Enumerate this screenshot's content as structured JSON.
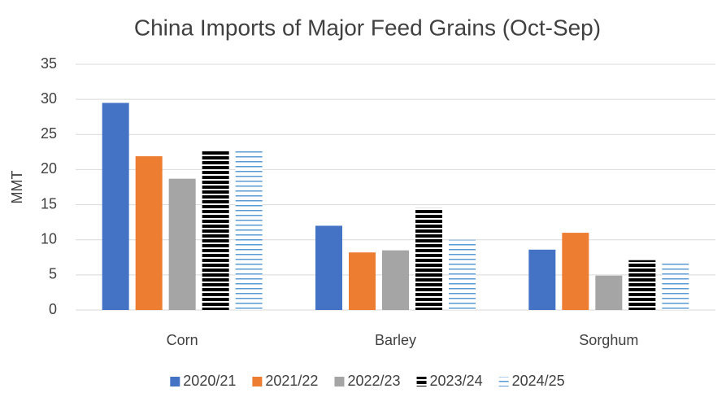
{
  "chart_data": {
    "type": "bar",
    "title": "China Imports of Major Feed Grains (Oct-Sep)",
    "y_label": "MMT",
    "categories": [
      "Corn",
      "Barley",
      "Sorghum"
    ],
    "series": [
      {
        "name": "2020/21",
        "color": "#4472c4",
        "values": [
          29.5,
          12.0,
          8.6
        ]
      },
      {
        "name": "2021/22",
        "color": "#ed7d31",
        "values": [
          21.9,
          8.2,
          11.0
        ]
      },
      {
        "name": "2022/23",
        "color": "#a5a5a5",
        "values": [
          18.7,
          8.5,
          4.9
        ]
      },
      {
        "name": "2023/24",
        "color": "#000000",
        "pattern": "horizontal-stripes",
        "values": [
          22.8,
          14.5,
          7.1
        ]
      },
      {
        "name": "2024/25",
        "color": "#5b9bd5",
        "pattern": "horizontal-lines",
        "values": [
          22.8,
          10.0,
          7.1
        ]
      }
    ],
    "ylim": [
      0,
      35
    ],
    "yticks": [
      0,
      5,
      10,
      15,
      20,
      25,
      30,
      35
    ],
    "grid": true,
    "legend": "bottom"
  }
}
